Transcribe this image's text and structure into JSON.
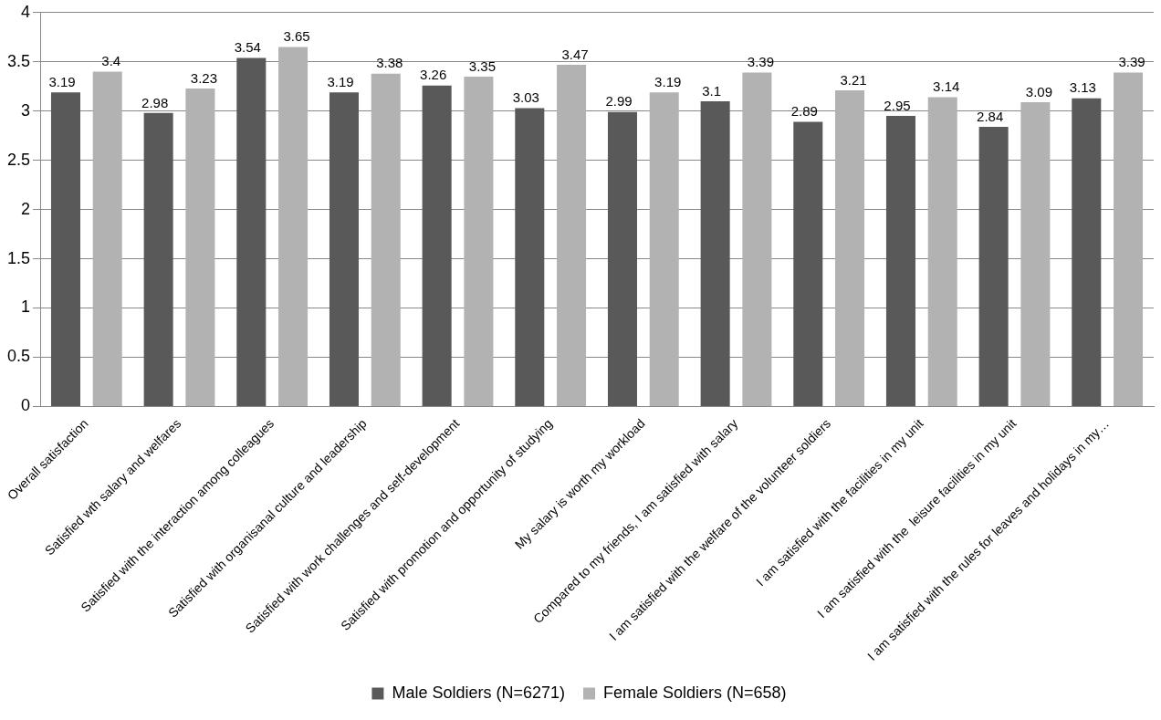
{
  "chart_data": {
    "type": "bar",
    "categories": [
      "Overall satisfaction",
      "Satisfied wth salary and welfares",
      "Satisfied with the interaction among colleagues",
      "Satisfied with organisanal culture and leadership",
      "Satisfied with work challenges and self-development",
      "Satisfied with promotion and opportunity of studying",
      "My salary is worth my workload",
      "Compared to my friends, I am satisfied with salary",
      "I am satisfied with the welfare of the volunteer soldiers",
      "I am satisfied with the facilities in my unit",
      "I am satisfied with the  leisure facilities in my unit",
      "I am satisfied with the rules for leaves and holidays in my…"
    ],
    "series": [
      {
        "name": "Male Soldiers (N=6271)",
        "color": "#595959",
        "values": [
          3.19,
          2.98,
          3.54,
          3.19,
          3.26,
          3.03,
          2.99,
          3.1,
          2.89,
          2.95,
          2.84,
          3.13
        ]
      },
      {
        "name": "Female Soldiers (N=658)",
        "color": "#b2b2b2",
        "values": [
          3.4,
          3.23,
          3.65,
          3.38,
          3.35,
          3.47,
          3.19,
          3.39,
          3.21,
          3.14,
          3.09,
          3.39
        ]
      }
    ],
    "ylim": [
      0,
      4
    ],
    "yticks": [
      0,
      0.5,
      1,
      1.5,
      2,
      2.5,
      3,
      3.5,
      4
    ],
    "grid": "y",
    "legend": "bottom",
    "data_labels": true
  }
}
